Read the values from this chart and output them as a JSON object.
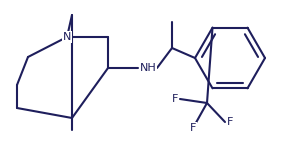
{
  "line_color": "#1e1e5c",
  "line_width": 1.5,
  "bg_color": "#ffffff",
  "figsize": [
    2.9,
    1.5
  ],
  "dpi": 100,
  "xlim": [
    0,
    290
  ],
  "ylim": [
    0,
    150
  ]
}
